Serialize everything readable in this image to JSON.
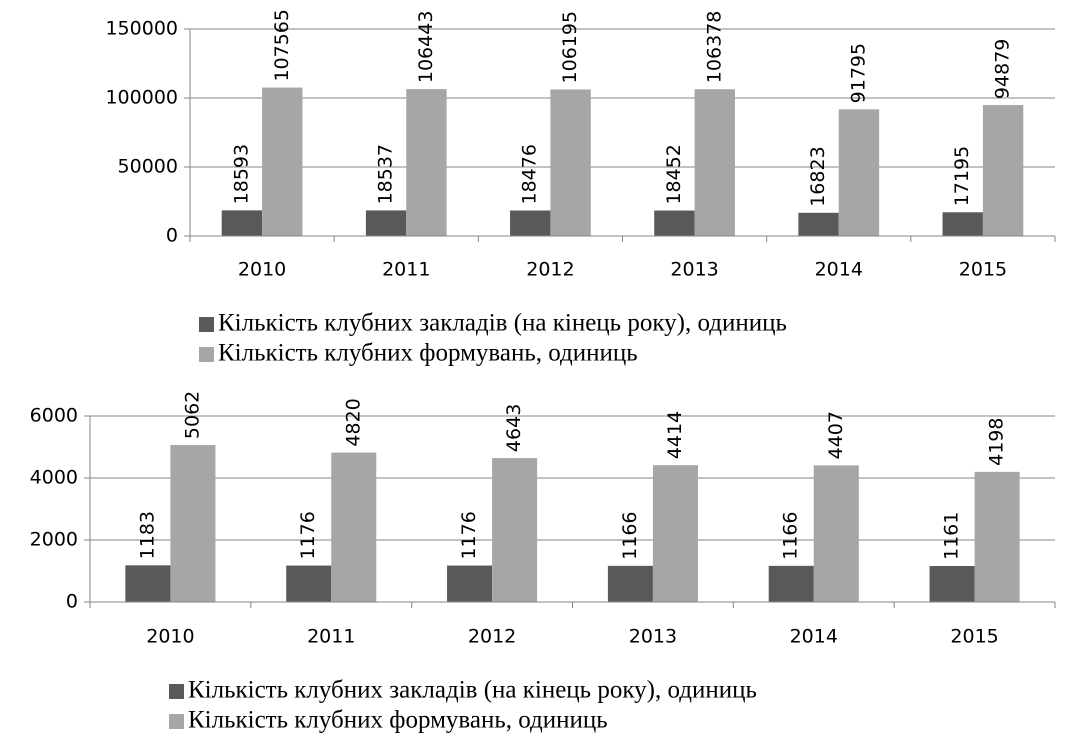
{
  "chart_data": [
    {
      "type": "bar",
      "categories": [
        "2010",
        "2011",
        "2012",
        "2013",
        "2014",
        "2015"
      ],
      "series": [
        {
          "name": "Кількість клубних закладів (на кінець року), одиниць",
          "color": "#595959",
          "values": [
            18593,
            18537,
            18476,
            18452,
            16823,
            17195
          ]
        },
        {
          "name": "Кількість клубних формувань, одиниць",
          "color": "#a6a6a6",
          "values": [
            107565,
            106443,
            106195,
            106378,
            91795,
            94879
          ]
        }
      ],
      "ylim": [
        0,
        150000
      ],
      "yticks": [
        0,
        50000,
        100000,
        150000
      ],
      "grid": true
    },
    {
      "type": "bar",
      "categories": [
        "2010",
        "2011",
        "2012",
        "2013",
        "2014",
        "2015"
      ],
      "series": [
        {
          "name": "Кількість клубних закладів (на кінець року), одиниць",
          "color": "#595959",
          "values": [
            1183,
            1176,
            1176,
            1166,
            1166,
            1161
          ]
        },
        {
          "name": "Кількість клубних формувань, одиниць",
          "color": "#a6a6a6",
          "values": [
            5062,
            4820,
            4643,
            4414,
            4407,
            4198
          ]
        }
      ],
      "ylim": [
        0,
        6000
      ],
      "yticks": [
        0,
        2000,
        4000,
        6000
      ],
      "grid": true
    }
  ]
}
